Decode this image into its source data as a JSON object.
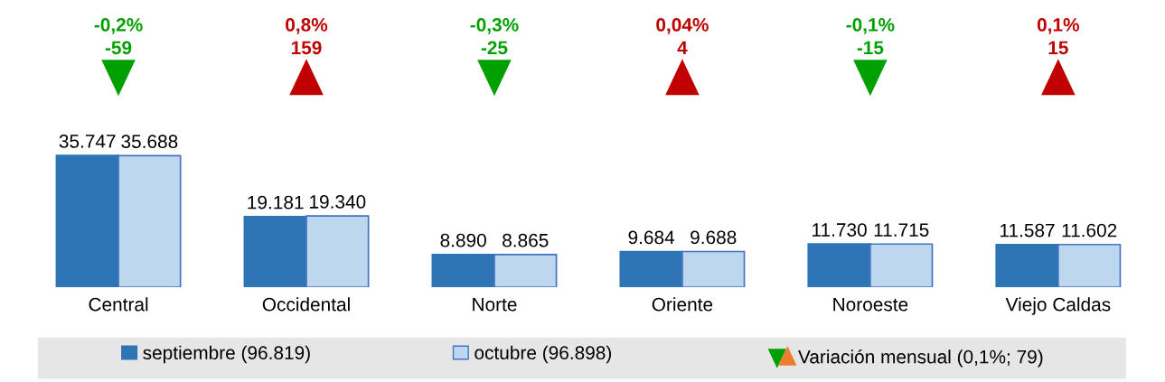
{
  "chart_data": {
    "type": "bar",
    "categories": [
      "Central",
      "Occidental",
      "Norte",
      "Oriente",
      "Noroeste",
      "Viejo Caldas"
    ],
    "series": [
      {
        "name": "septiembre (96.819)",
        "color": "#2e75b6",
        "values": [
          35747,
          19181,
          8890,
          9684,
          11730,
          11587
        ],
        "value_labels": [
          "35.747",
          "19.181",
          "8.890",
          "9.684",
          "11.730",
          "11.587"
        ]
      },
      {
        "name": "octubre (96.898)",
        "color": "#bdd7ee",
        "values": [
          35688,
          19340,
          8865,
          9688,
          11715,
          11602
        ],
        "value_labels": [
          "35.688",
          "19.340",
          "8.865",
          "9.688",
          "11.715",
          "11.602"
        ]
      }
    ],
    "annotations": [
      "-0,2%\n-59",
      "0,8%\n159",
      "-0,3%\n-25",
      "0,04%\n4",
      "-0,1%\n-15",
      "0,1%\n15",
      "Variación mensual (0,1%; 79)"
    ],
    "legend": "bottom",
    "grid": false
  }
}
